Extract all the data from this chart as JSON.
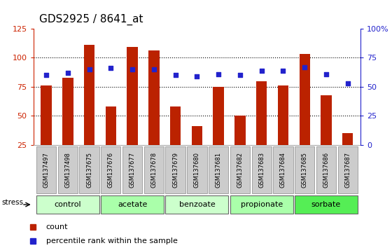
{
  "title": "GDS2925 / 8641_at",
  "samples": [
    "GSM137497",
    "GSM137498",
    "GSM137675",
    "GSM137676",
    "GSM137677",
    "GSM137678",
    "GSM137679",
    "GSM137680",
    "GSM137681",
    "GSM137682",
    "GSM137683",
    "GSM137684",
    "GSM137685",
    "GSM137686",
    "GSM137687"
  ],
  "counts": [
    76,
    83,
    111,
    58,
    109,
    106,
    58,
    41,
    75,
    50,
    80,
    76,
    103,
    68,
    35
  ],
  "percentiles": [
    60,
    62,
    65,
    66,
    65,
    65,
    60,
    59,
    61,
    60,
    64,
    64,
    67,
    61,
    53
  ],
  "bar_color": "#bb2200",
  "dot_color": "#2222cc",
  "ylim_left": [
    25,
    125
  ],
  "ylim_right": [
    0,
    100
  ],
  "yticks_left": [
    25,
    50,
    75,
    100,
    125
  ],
  "yticks_right": [
    0,
    25,
    50,
    75,
    100
  ],
  "group_info": [
    {
      "label": "control",
      "indices": [
        0,
        1,
        2
      ],
      "color": "#ccffcc"
    },
    {
      "label": "acetate",
      "indices": [
        3,
        4,
        5
      ],
      "color": "#aaffaa"
    },
    {
      "label": "benzoate",
      "indices": [
        6,
        7,
        8
      ],
      "color": "#ccffcc"
    },
    {
      "label": "propionate",
      "indices": [
        9,
        10,
        11
      ],
      "color": "#aaffaa"
    },
    {
      "label": "sorbate",
      "indices": [
        12,
        13,
        14
      ],
      "color": "#55ee55"
    }
  ],
  "stress_label": "stress",
  "legend_count_label": "count",
  "legend_percentile_label": "percentile rank within the sample",
  "left_axis_color": "#cc2200",
  "right_axis_color": "#2222cc",
  "title_fontsize": 11,
  "bar_width": 0.5,
  "xlim": [
    -0.6,
    14.6
  ]
}
